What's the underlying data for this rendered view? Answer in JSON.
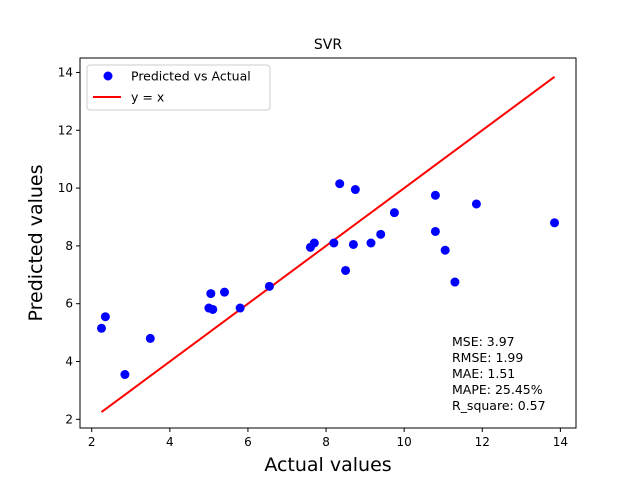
{
  "chart_data": {
    "type": "scatter",
    "title": "SVR",
    "xlabel": "Actual values",
    "ylabel": "Predicted values",
    "xlim": [
      1.7,
      14.4
    ],
    "ylim": [
      1.7,
      14.5
    ],
    "xticks": [
      2,
      4,
      6,
      8,
      10,
      12,
      14
    ],
    "yticks": [
      2,
      4,
      6,
      8,
      10,
      12,
      14
    ],
    "grid": false,
    "legend_position": "top-left",
    "series": [
      {
        "name": "Predicted vs Actual",
        "kind": "scatter",
        "color": "#0000ff",
        "x": [
          2.25,
          2.35,
          2.85,
          3.5,
          5.0,
          5.05,
          5.1,
          5.4,
          5.8,
          6.55,
          7.6,
          7.7,
          8.2,
          8.35,
          8.5,
          8.7,
          8.75,
          9.15,
          9.4,
          9.75,
          10.8,
          10.8,
          11.05,
          11.3,
          11.85,
          13.85
        ],
        "y": [
          5.15,
          5.55,
          3.55,
          4.8,
          5.85,
          6.35,
          5.8,
          6.4,
          5.85,
          6.6,
          7.95,
          8.1,
          8.1,
          10.15,
          7.15,
          8.05,
          9.95,
          8.1,
          8.4,
          9.15,
          9.75,
          8.5,
          7.85,
          6.75,
          9.45,
          8.8
        ]
      },
      {
        "name": "y = x",
        "kind": "line",
        "color": "#ff0000",
        "x": [
          2.25,
          13.85
        ],
        "y": [
          2.25,
          13.85
        ]
      }
    ],
    "annotation": [
      "MSE: 3.97",
      "RMSE: 1.99",
      "MAE: 1.51",
      "MAPE: 25.45%",
      "R_square: 0.57"
    ]
  }
}
